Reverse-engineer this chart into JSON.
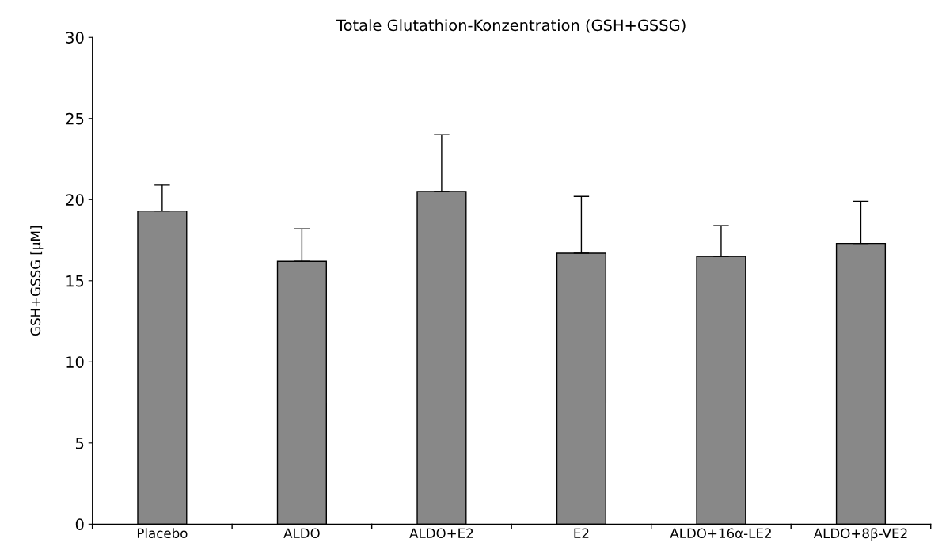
{
  "chart_data": {
    "type": "bar",
    "title": "Totale Glutathion-Konzentration (GSH+GSSG)",
    "ylabel": "GSH+GSSG [µM]",
    "categories": [
      "Placebo",
      "ALDO",
      "ALDO+E2",
      "E2",
      "ALDO+16α-LE2",
      "ALDO+8β-VE2"
    ],
    "values": [
      19.3,
      16.2,
      20.5,
      16.7,
      16.5,
      17.3
    ],
    "errors": [
      [
        19.3,
        20.9
      ],
      [
        16.2,
        18.2
      ],
      [
        20.5,
        24.0
      ],
      [
        16.7,
        20.2
      ],
      [
        16.5,
        18.4
      ],
      [
        17.3,
        19.9
      ]
    ],
    "color": "#888888",
    "ylim": [
      0,
      30
    ],
    "yticks": [
      0,
      5,
      10,
      15,
      20,
      25,
      30
    ],
    "grid": false,
    "legend": false
  }
}
